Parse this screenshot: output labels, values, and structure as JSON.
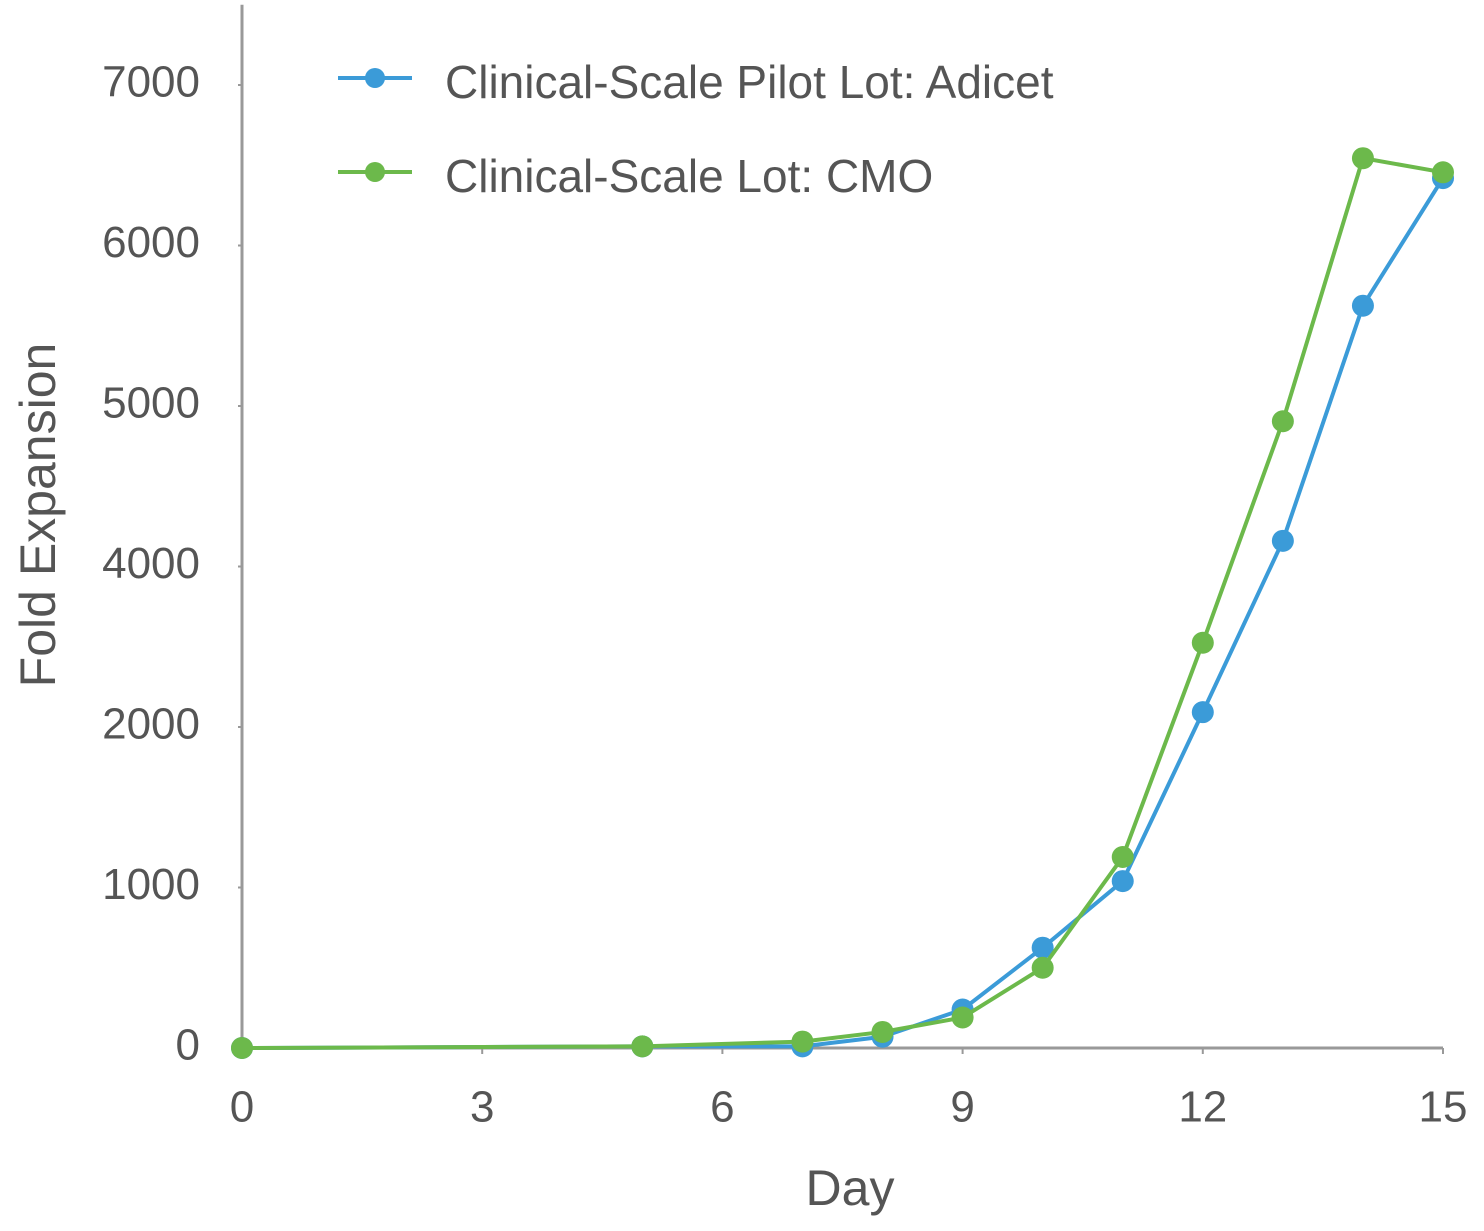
{
  "chart_data": {
    "type": "line",
    "x_label": "Day",
    "y_label": "Fold Expansion",
    "x": [
      0,
      5,
      7,
      8,
      9,
      10,
      11,
      12,
      13,
      14,
      15
    ],
    "series": [
      {
        "name": "Clinical-Scale Pilot Lot: Adicet",
        "color": "#3b9bd8",
        "values": [
          0,
          10,
          10,
          70,
          240,
          625,
          1040,
          2185,
          4160,
          5625,
          6420
        ]
      },
      {
        "name": "Clinical-Scale Lot: CMO",
        "color": "#6cb94b",
        "values": [
          0,
          10,
          40,
          100,
          190,
          500,
          1190,
          3050,
          4905,
          6544,
          6456
        ]
      }
    ],
    "xlim": [
      0,
      15
    ],
    "xticks": [
      0,
      3,
      6,
      9,
      12,
      15
    ],
    "ylim": [
      0,
      7500
    ],
    "yticks": [
      0,
      1000,
      2000,
      4000,
      5000,
      6000,
      7000
    ],
    "legend": "top-left"
  }
}
